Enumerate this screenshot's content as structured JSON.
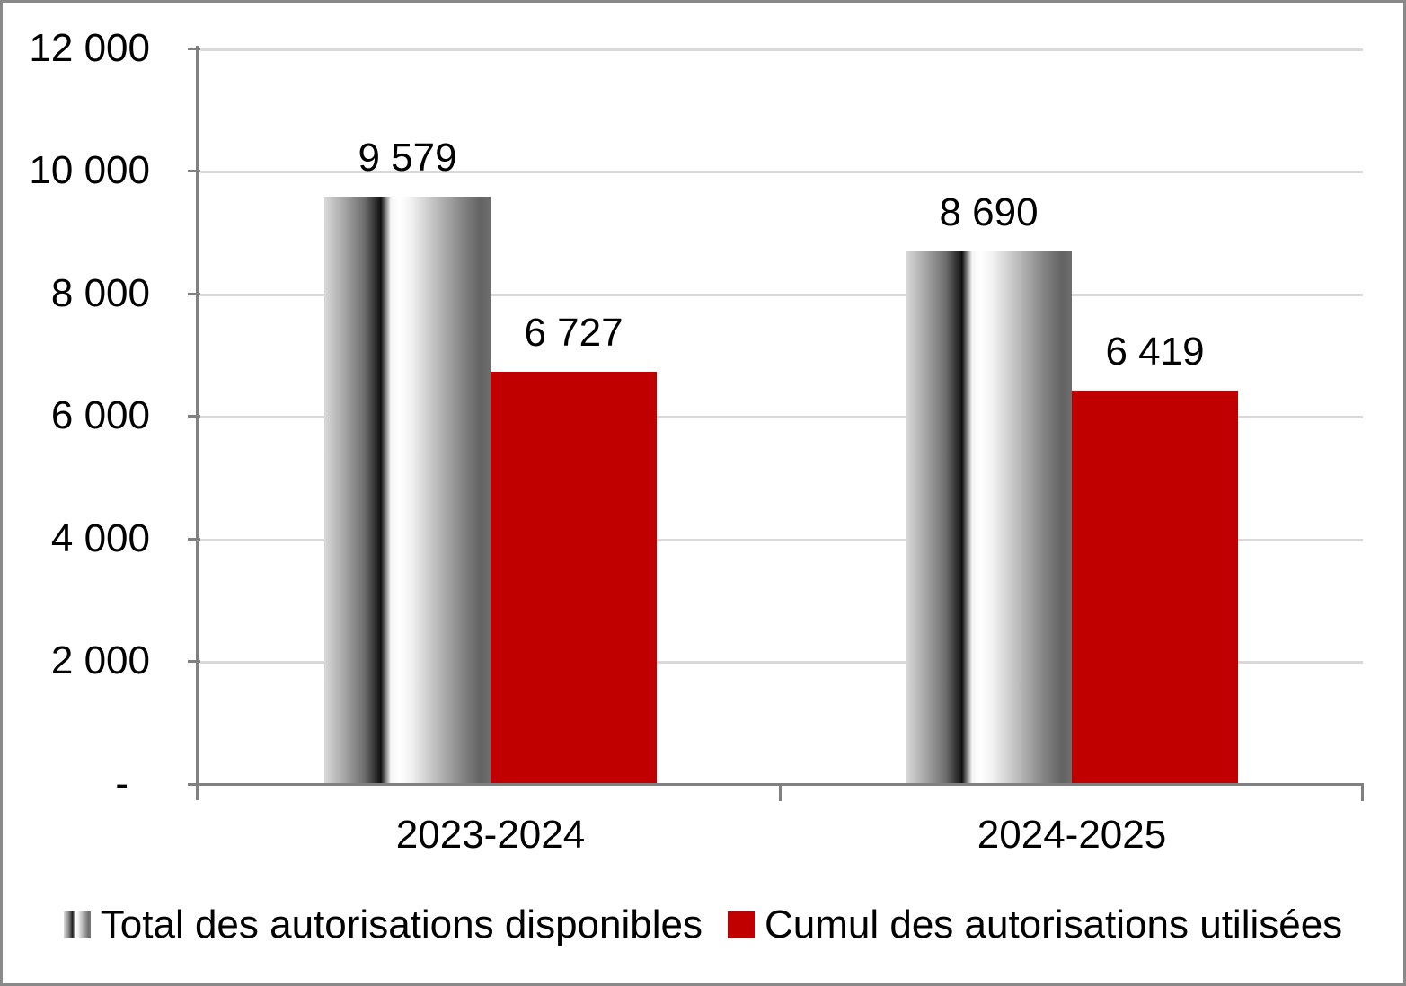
{
  "chart_data": {
    "type": "bar",
    "categories": [
      "2023-2024",
      "2024-2025"
    ],
    "series": [
      {
        "name": "Total des autorisations disponibles",
        "values": [
          9579,
          8690
        ],
        "labels": [
          "9 579",
          "8 690"
        ],
        "fill": "gray-gradient"
      },
      {
        "name": "Cumul des autorisations utilisées",
        "values": [
          6727,
          6419
        ],
        "labels": [
          "6 727",
          "6 419"
        ],
        "fill": "#C00000"
      }
    ],
    "title": "",
    "xlabel": "",
    "ylabel": "",
    "ylim": [
      0,
      12000
    ],
    "ytick_interval": 2000,
    "yticks": [
      "12 000",
      "10 000",
      "8 000",
      "6 000",
      "4 000",
      "2 000",
      "-"
    ],
    "grid": true,
    "legend_position": "bottom"
  },
  "colors": {
    "bar_red": "#C00000",
    "axis": "#808080",
    "gridline": "#D9D9D9",
    "border": "#898989",
    "text": "#000000"
  }
}
